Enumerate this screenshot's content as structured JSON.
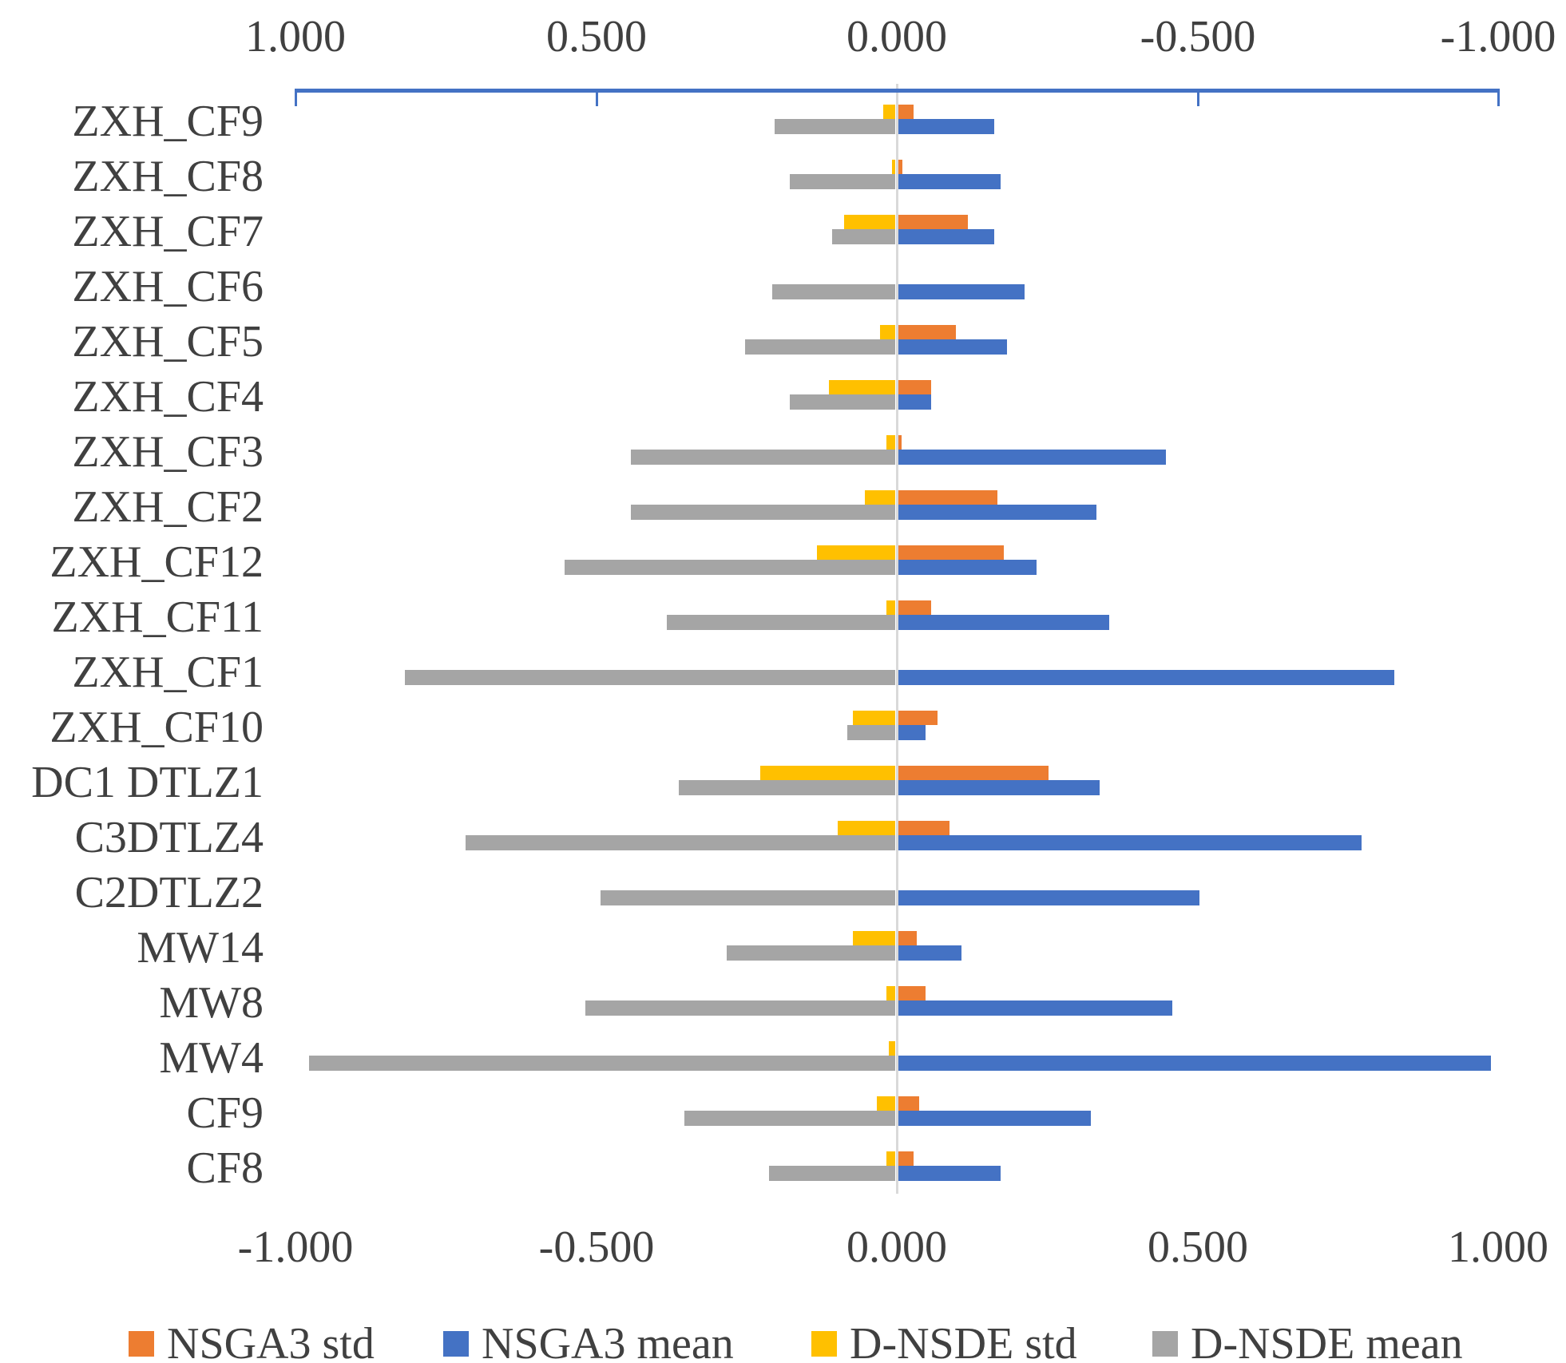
{
  "chart_data": {
    "type": "bar",
    "variant": "horizontal-diverging-tornado",
    "title": "",
    "categories": [
      "ZXH_CF9",
      "ZXH_CF8",
      "ZXH_CF7",
      "ZXH_CF6",
      "ZXH_CF5",
      "ZXH_CF4",
      "ZXH_CF3",
      "ZXH_CF2",
      "ZXH_CF12",
      "ZXH_CF11",
      "ZXH_CF1",
      "ZXH_CF10",
      "DC1 DTLZ1",
      "C3DTLZ4",
      "C2DTLZ2",
      "MW14",
      "MW8",
      "MW4",
      "CF9",
      "CF8"
    ],
    "series": [
      {
        "name": "NSGA3 std",
        "color": "#ED7D31",
        "direction": "right",
        "values": [
          0.025,
          0.006,
          0.115,
          0,
          0.095,
          0.055,
          0.005,
          0.165,
          0.175,
          0.055,
          0,
          0.065,
          0.25,
          0.085,
          0,
          0.03,
          0.045,
          0,
          0.035,
          0.025
        ]
      },
      {
        "name": "NSGA3 mean",
        "color": "#4472C4",
        "direction": "right",
        "values": [
          0.16,
          0.17,
          0.16,
          0.21,
          0.18,
          0.055,
          0.445,
          0.33,
          0.23,
          0.35,
          0.825,
          0.045,
          0.335,
          0.77,
          0.5,
          0.105,
          0.455,
          0.985,
          0.32,
          0.17
        ]
      },
      {
        "name": "D-NSDE std",
        "color": "#FFC000",
        "direction": "left",
        "values": [
          0.02,
          0.005,
          0.085,
          0,
          0.025,
          0.11,
          0.015,
          0.05,
          0.13,
          0.015,
          0,
          0.07,
          0.225,
          0.095,
          0,
          0.07,
          0.015,
          0.01,
          0.03,
          0.015
        ]
      },
      {
        "name": "D-NSDE mean",
        "color": "#A5A5A5",
        "direction": "left",
        "values": [
          0.2,
          0.175,
          0.105,
          0.205,
          0.25,
          0.175,
          0.44,
          0.44,
          0.55,
          0.38,
          0.815,
          0.08,
          0.36,
          0.715,
          0.49,
          0.28,
          0.515,
          0.975,
          0.35,
          0.21
        ]
      }
    ],
    "note": "Left-directed series (D-NSDE std / D-NSDE mean) are magnitudes plotted toward the reversed top axis; right-directed series follow the bottom axis.",
    "axes": {
      "top": {
        "tick_labels": [
          "1.000",
          "0.500",
          "0.000",
          "-0.500",
          "-1.000"
        ],
        "reversed": true,
        "range": [
          1,
          -1
        ]
      },
      "bottom": {
        "tick_labels": [
          "-1.000",
          "-0.500",
          "0.000",
          "0.500",
          "1.000"
        ],
        "reversed": false,
        "range": [
          -1,
          1
        ]
      }
    },
    "grid": "zero-line-only",
    "legend_position": "bottom",
    "colors": {
      "axis_line": "#4472C4",
      "zero_line": "#D9D9D9",
      "text": "#404040",
      "background": "#FFFFFF"
    }
  }
}
